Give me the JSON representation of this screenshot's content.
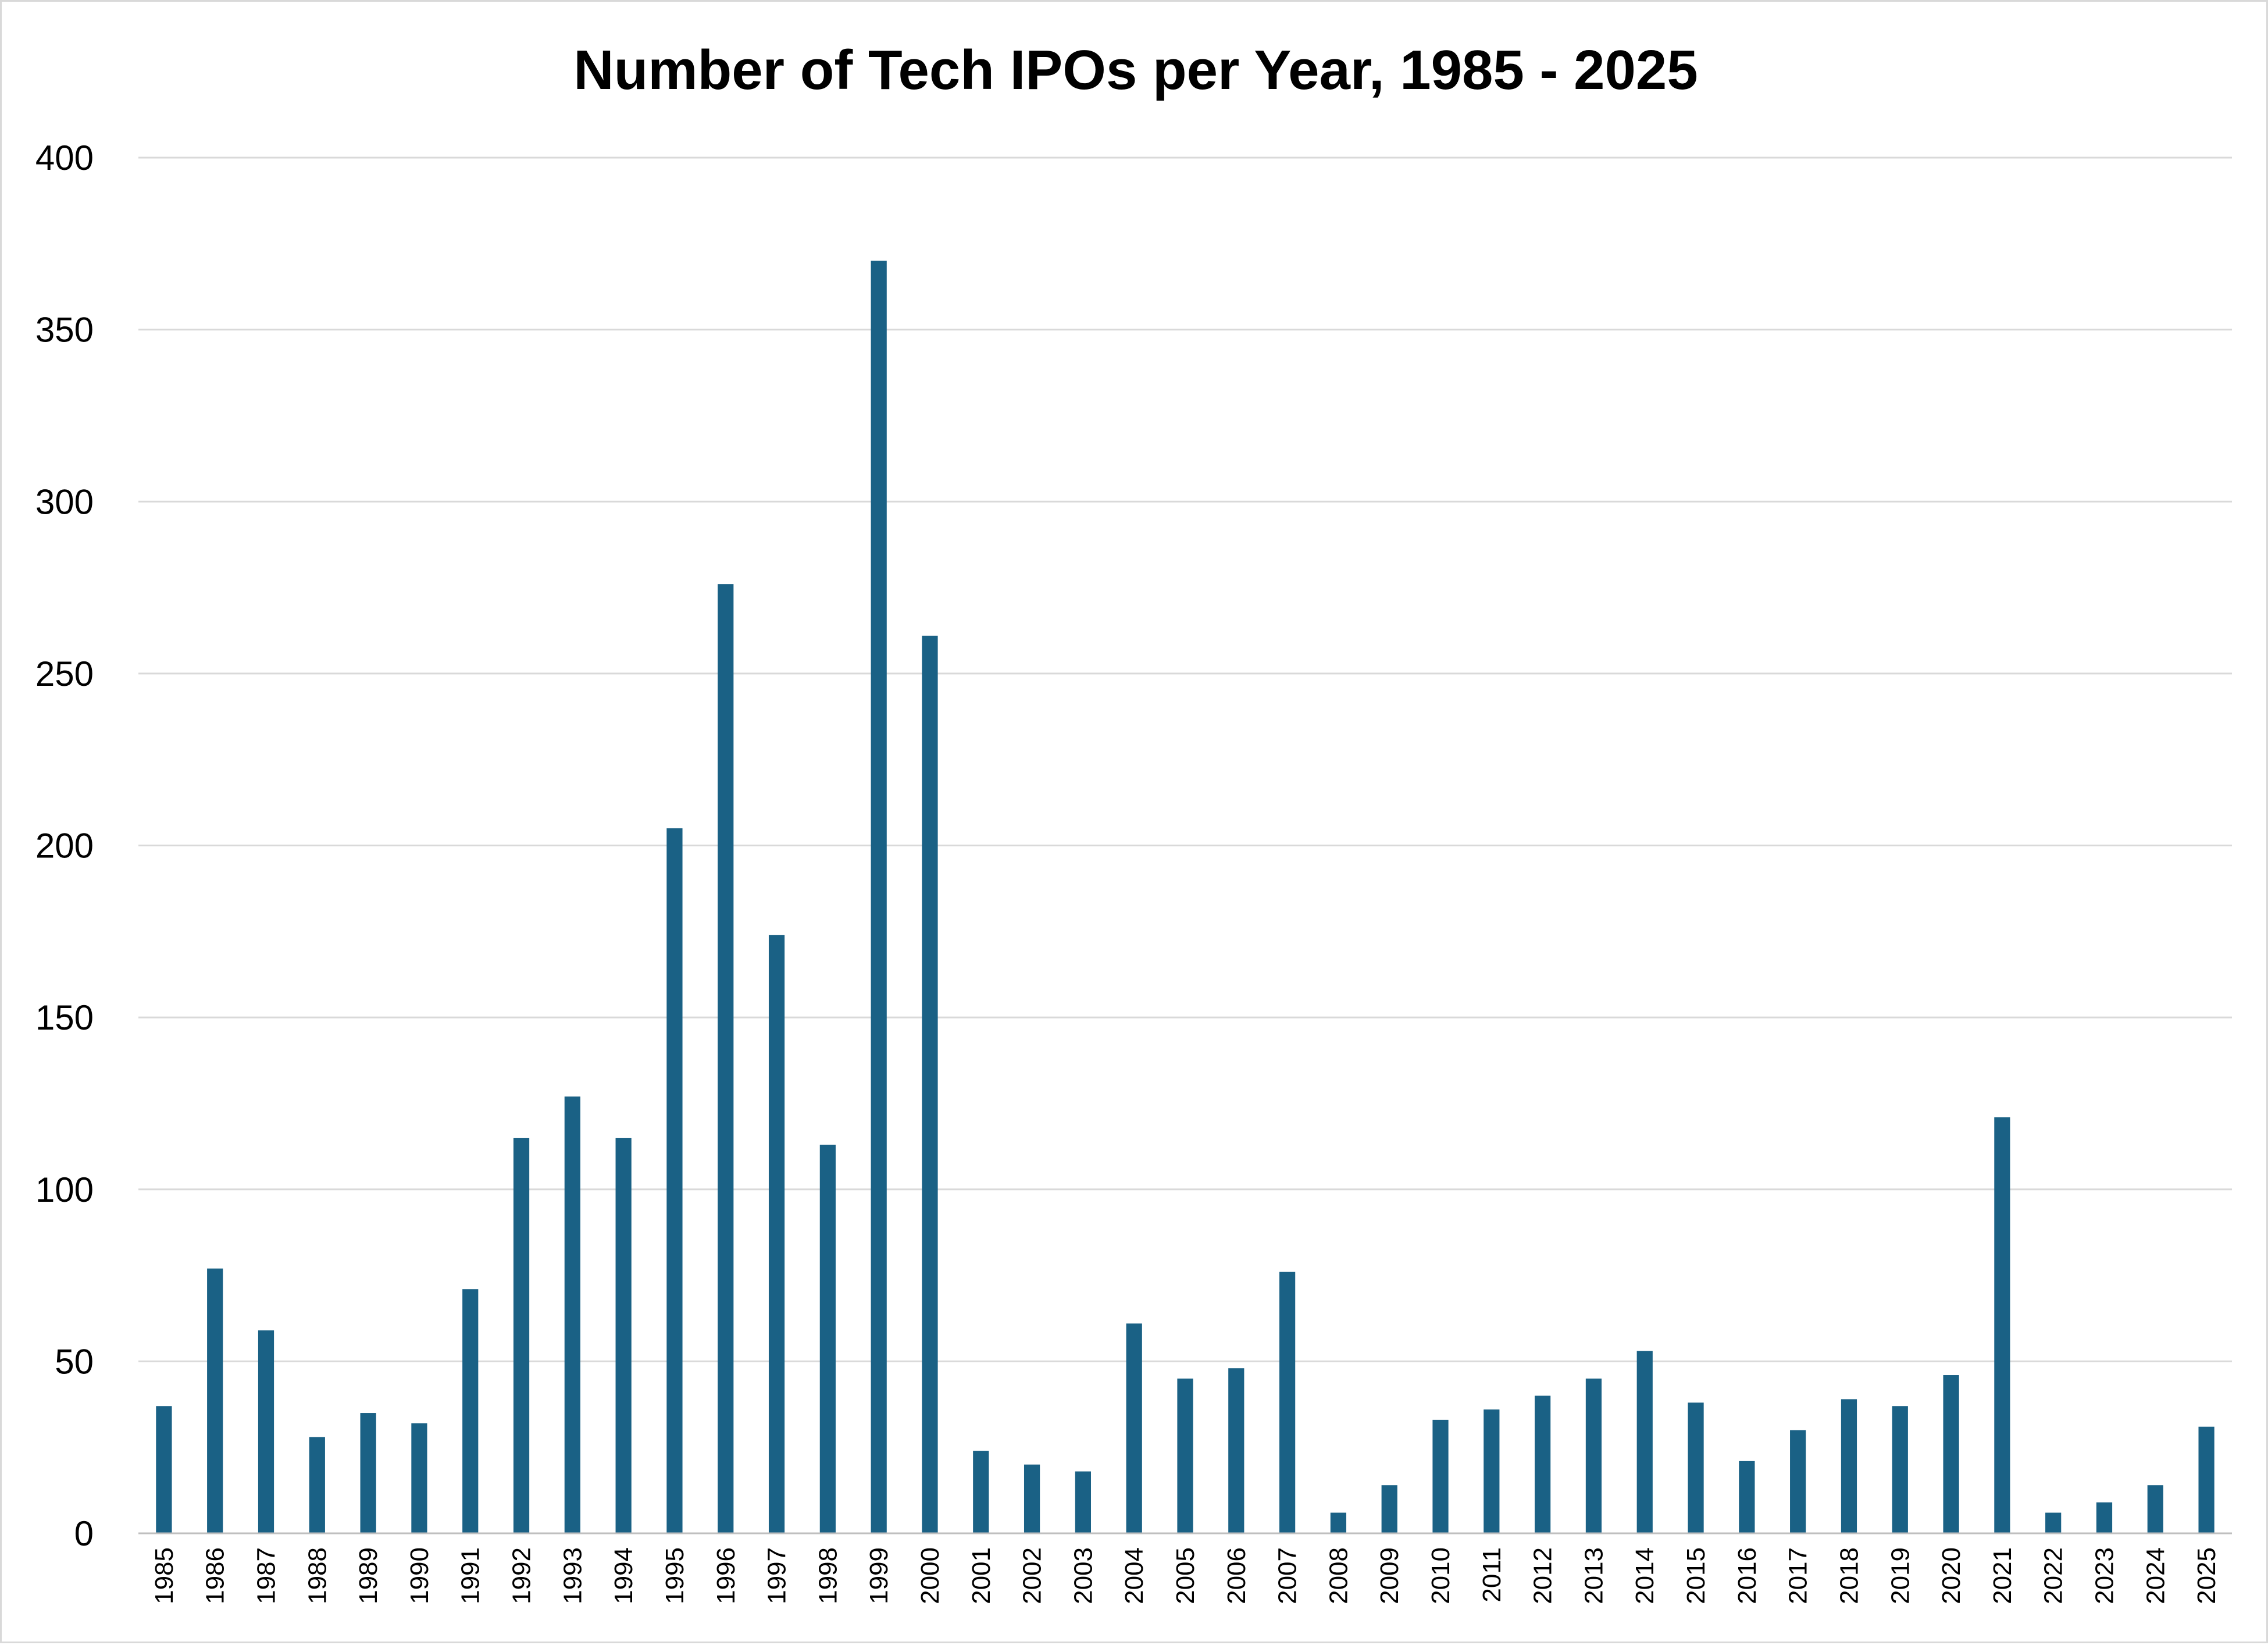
{
  "chart_data": {
    "type": "bar",
    "title": "Number of Tech IPOs per Year, 1985 - 2025",
    "xlabel": "",
    "ylabel": "",
    "ylim": [
      0,
      400
    ],
    "yticks": [
      "0",
      "50",
      "100",
      "150",
      "200",
      "250",
      "300",
      "350",
      "400"
    ],
    "grid": true,
    "legend": "none",
    "bar_color": "#1a6185",
    "categories": [
      "1985",
      "1986",
      "1987",
      "1988",
      "1989",
      "1990",
      "1991",
      "1992",
      "1993",
      "1994",
      "1995",
      "1996",
      "1997",
      "1998",
      "1999",
      "2000",
      "2001",
      "2002",
      "2003",
      "2004",
      "2005",
      "2006",
      "2007",
      "2008",
      "2009",
      "2010",
      "2011",
      "2012",
      "2013",
      "2014",
      "2015",
      "2016",
      "2017",
      "2018",
      "2019",
      "2020",
      "2021",
      "2022",
      "2023",
      "2024",
      "2025"
    ],
    "values": [
      37,
      77,
      59,
      28,
      35,
      32,
      71,
      115,
      127,
      115,
      205,
      276,
      174,
      113,
      370,
      261,
      24,
      20,
      18,
      61,
      45,
      48,
      76,
      6,
      14,
      33,
      36,
      40,
      45,
      53,
      38,
      21,
      30,
      39,
      37,
      46,
      121,
      6,
      9,
      14,
      31
    ]
  }
}
